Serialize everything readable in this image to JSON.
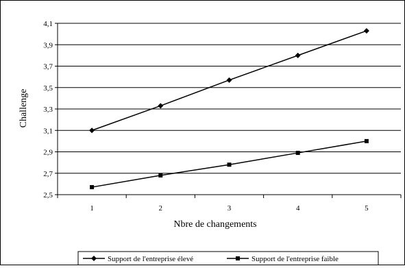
{
  "chart_data": {
    "type": "line",
    "xlabel": "Nbre de changements",
    "ylabel": "Challenge",
    "x": [
      1,
      2,
      3,
      4,
      5
    ],
    "x_tick_labels": [
      "1",
      "2",
      "3",
      "4",
      "5"
    ],
    "ylim": [
      2.5,
      4.1
    ],
    "y_tick_labels": [
      "2,5",
      "2,7",
      "2,9",
      "3,1",
      "3,3",
      "3,5",
      "3,7",
      "3,9",
      "4,1"
    ],
    "grid": "horizontal",
    "legend_position": "bottom",
    "series": [
      {
        "name": "Support de l'entreprise élevé",
        "marker": "diamond",
        "color": "#000000",
        "values": [
          3.1,
          3.33,
          3.57,
          3.8,
          4.03
        ]
      },
      {
        "name": "Support de l'entreprise faible",
        "marker": "square",
        "color": "#000000",
        "values": [
          2.57,
          2.68,
          2.78,
          2.89,
          3.0
        ]
      }
    ]
  }
}
